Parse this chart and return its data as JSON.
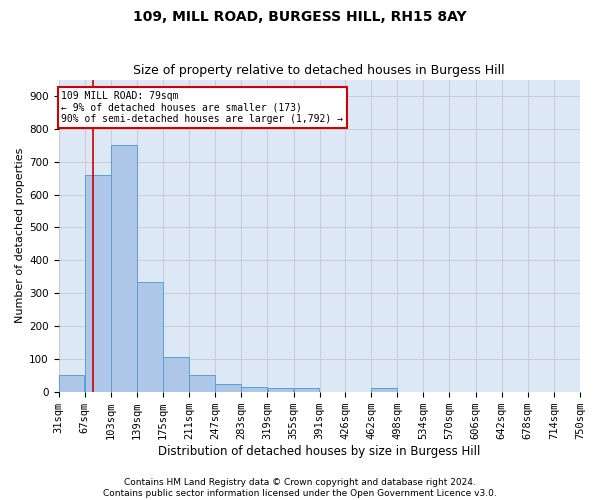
{
  "title": "109, MILL ROAD, BURGESS HILL, RH15 8AY",
  "subtitle": "Size of property relative to detached houses in Burgess Hill",
  "xlabel": "Distribution of detached houses by size in Burgess Hill",
  "ylabel": "Number of detached properties",
  "bin_edges": [
    31,
    67,
    103,
    139,
    175,
    211,
    247,
    283,
    319,
    355,
    391,
    426,
    462,
    498,
    534,
    570,
    606,
    642,
    678,
    714,
    750
  ],
  "bar_heights": [
    50,
    660,
    750,
    335,
    105,
    50,
    25,
    15,
    10,
    10,
    0,
    0,
    10,
    0,
    0,
    0,
    0,
    0,
    0,
    0
  ],
  "bar_color": "#aec6e8",
  "bar_edge_color": "#5a9fd4",
  "grid_color": "#cccccc",
  "background_color": "#dce8f5",
  "property_size": 79,
  "red_line_color": "#cc0000",
  "annotation_text": "109 MILL ROAD: 79sqm\n← 9% of detached houses are smaller (173)\n90% of semi-detached houses are larger (1,792) →",
  "annotation_box_color": "#ffffff",
  "annotation_edge_color": "#cc0000",
  "ylim": [
    0,
    950
  ],
  "yticks": [
    0,
    100,
    200,
    300,
    400,
    500,
    600,
    700,
    800,
    900
  ],
  "footer_line1": "Contains HM Land Registry data © Crown copyright and database right 2024.",
  "footer_line2": "Contains public sector information licensed under the Open Government Licence v3.0.",
  "title_fontsize": 10,
  "subtitle_fontsize": 9,
  "tick_fontsize": 7.5,
  "ylabel_fontsize": 8,
  "xlabel_fontsize": 8.5,
  "footer_fontsize": 6.5
}
